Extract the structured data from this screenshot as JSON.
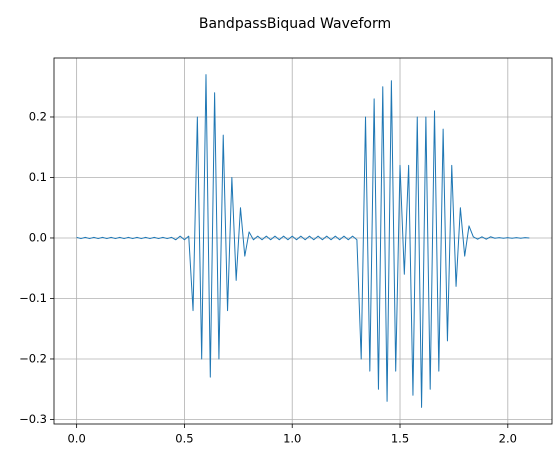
{
  "chart_data": {
    "type": "line",
    "title": "BandpassBiquad Waveform",
    "x": [
      0,
      0.02,
      0.04,
      0.06,
      0.08,
      0.1,
      0.12,
      0.14,
      0.16,
      0.18,
      0.2,
      0.22,
      0.24,
      0.26,
      0.28,
      0.3,
      0.32,
      0.34,
      0.36,
      0.38,
      0.4,
      0.42,
      0.44,
      0.46,
      0.48,
      0.5,
      0.52,
      0.54,
      0.56,
      0.58,
      0.6,
      0.62,
      0.64,
      0.66,
      0.68,
      0.7,
      0.72,
      0.74,
      0.76,
      0.78,
      0.8,
      0.82,
      0.84,
      0.86,
      0.88,
      0.9,
      0.92,
      0.94,
      0.96,
      0.98,
      1,
      1.02,
      1.04,
      1.06,
      1.08,
      1.1,
      1.12,
      1.14,
      1.16,
      1.18,
      1.2,
      1.22,
      1.24,
      1.26,
      1.28,
      1.3,
      1.32,
      1.34,
      1.36,
      1.38,
      1.4,
      1.42,
      1.44,
      1.46,
      1.48,
      1.5,
      1.52,
      1.54,
      1.56,
      1.58,
      1.6,
      1.62,
      1.64,
      1.66,
      1.68,
      1.7,
      1.72,
      1.74,
      1.76,
      1.78,
      1.8,
      1.82,
      1.84,
      1.86,
      1.88,
      1.9,
      1.92,
      1.94,
      1.96,
      1.98,
      2,
      2.02,
      2.04,
      2.06,
      2.08,
      2.1
    ],
    "series": [
      {
        "color": "#1f77b4",
        "values": [
          0.001,
          -0.001,
          0.001,
          -0.001,
          0.001,
          -0.001,
          0.001,
          -0.001,
          0.001,
          -0.001,
          0.001,
          -0.001,
          0.001,
          -0.001,
          0.001,
          -0.001,
          0.001,
          -0.001,
          0.001,
          -0.001,
          0.001,
          -0.001,
          0.001,
          -0.003,
          0.003,
          -0.003,
          0.003,
          -0.12,
          0.2,
          -0.2,
          0.27,
          -0.23,
          0.24,
          -0.2,
          0.17,
          -0.12,
          0.1,
          -0.07,
          0.05,
          -0.03,
          0.01,
          -0.003,
          0.003,
          -0.003,
          0.003,
          -0.003,
          0.003,
          -0.003,
          0.003,
          -0.003,
          0.003,
          -0.003,
          0.003,
          -0.003,
          0.003,
          -0.003,
          0.003,
          -0.003,
          0.003,
          -0.003,
          0.003,
          -0.003,
          0.003,
          -0.003,
          0.003,
          -0.003,
          -0.2,
          0.2,
          -0.22,
          0.23,
          -0.25,
          0.25,
          -0.27,
          0.26,
          -0.22,
          0.12,
          -0.06,
          0.12,
          -0.26,
          0.2,
          -0.28,
          0.2,
          -0.25,
          0.21,
          -0.22,
          0.18,
          -0.17,
          0.12,
          -0.08,
          0.05,
          -0.03,
          0.02,
          0.002,
          -0.002,
          0.002,
          -0.002,
          0.002,
          -0.0005,
          0.0005,
          -0.0005,
          0.0005,
          -0.0005,
          0.0005,
          -0.0005,
          0.0005,
          0
        ]
      }
    ],
    "xlim": [
      -0.105,
      2.205
    ],
    "ylim": [
      -0.3075,
      0.2975
    ],
    "xticks": [
      {
        "value": 0,
        "label": "0.0"
      },
      0.5,
      {
        "value": 1,
        "label": "1.0"
      },
      1.5,
      {
        "value": 2,
        "label": "2.0"
      }
    ],
    "yticks": [
      {
        "value": -0.3,
        "label": "−0.3"
      },
      {
        "value": -0.2,
        "label": "−0.2"
      },
      {
        "value": -0.1,
        "label": "−0.1"
      },
      {
        "value": 0,
        "label": "0.0"
      },
      0.1,
      0.2
    ],
    "grid": true
  }
}
